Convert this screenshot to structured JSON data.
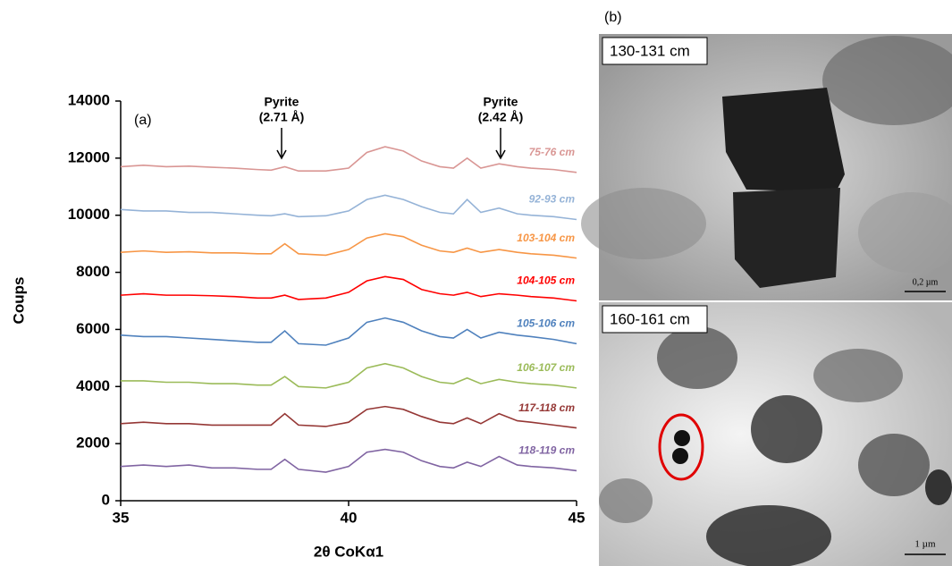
{
  "chart_data": {
    "type": "line",
    "panel_label": "(a)",
    "xlabel": "2θ CoKα1",
    "ylabel": "Coups",
    "x": [
      35,
      35.5,
      36,
      36.5,
      37,
      37.5,
      38,
      38.3,
      38.6,
      38.9,
      39.5,
      40,
      40.4,
      40.8,
      41.2,
      41.6,
      42,
      42.3,
      42.6,
      42.9,
      43.3,
      43.7,
      44,
      44.5,
      45
    ],
    "xlim": [
      35,
      45
    ],
    "xticks": [
      35,
      40,
      45
    ],
    "ylim": [
      0,
      14000
    ],
    "yticks": [
      0,
      2000,
      4000,
      6000,
      8000,
      10000,
      12000,
      14000
    ],
    "grid": false,
    "annotations": [
      [
        "Pyrite",
        "(2.71 Å)"
      ],
      [
        "Pyrite",
        "(2.42 Å)"
      ]
    ],
    "series": [
      {
        "name": "75-76 cm",
        "color": "#d99694",
        "values": [
          11700,
          11750,
          11700,
          11720,
          11680,
          11650,
          11600,
          11580,
          11700,
          11550,
          11550,
          11650,
          12200,
          12400,
          12250,
          11900,
          11700,
          11650,
          12000,
          11650,
          11800,
          11700,
          11650,
          11600,
          11500
        ]
      },
      {
        "name": "92-93 cm",
        "color": "#95b3d7",
        "values": [
          10200,
          10150,
          10150,
          10100,
          10100,
          10050,
          10000,
          9980,
          10050,
          9950,
          9980,
          10150,
          10550,
          10700,
          10550,
          10300,
          10100,
          10050,
          10550,
          10100,
          10250,
          10050,
          10000,
          9950,
          9850
        ]
      },
      {
        "name": "103-104 cm",
        "color": "#f79646",
        "values": [
          8700,
          8750,
          8700,
          8720,
          8680,
          8680,
          8650,
          8650,
          9000,
          8650,
          8600,
          8800,
          9200,
          9350,
          9250,
          8950,
          8750,
          8700,
          8850,
          8700,
          8800,
          8700,
          8650,
          8600,
          8500
        ]
      },
      {
        "name": "104-105 cm",
        "color": "#ff0000",
        "values": [
          7200,
          7250,
          7200,
          7200,
          7180,
          7150,
          7100,
          7100,
          7200,
          7050,
          7100,
          7300,
          7700,
          7850,
          7750,
          7400,
          7250,
          7200,
          7300,
          7150,
          7250,
          7200,
          7150,
          7100,
          7000
        ]
      },
      {
        "name": "105-106 cm",
        "color": "#4f81bd",
        "values": [
          5800,
          5750,
          5750,
          5700,
          5650,
          5600,
          5550,
          5550,
          5950,
          5500,
          5450,
          5700,
          6250,
          6400,
          6250,
          5950,
          5750,
          5700,
          6000,
          5700,
          5900,
          5800,
          5750,
          5650,
          5500
        ]
      },
      {
        "name": "106-107 cm",
        "color": "#9bbb59",
        "values": [
          4200,
          4200,
          4150,
          4150,
          4100,
          4100,
          4050,
          4050,
          4350,
          4000,
          3950,
          4150,
          4650,
          4800,
          4650,
          4350,
          4150,
          4100,
          4300,
          4100,
          4250,
          4150,
          4100,
          4050,
          3950
        ]
      },
      {
        "name": "117-118 cm",
        "color": "#953735",
        "values": [
          2700,
          2750,
          2700,
          2700,
          2650,
          2650,
          2650,
          2650,
          3050,
          2650,
          2600,
          2750,
          3200,
          3300,
          3200,
          2950,
          2750,
          2700,
          2900,
          2700,
          3050,
          2800,
          2750,
          2650,
          2550
        ]
      },
      {
        "name": "118-119 cm",
        "color": "#8064a2",
        "values": [
          1200,
          1250,
          1200,
          1250,
          1150,
          1150,
          1100,
          1100,
          1450,
          1100,
          1000,
          1200,
          1700,
          1800,
          1700,
          1400,
          1200,
          1150,
          1350,
          1200,
          1550,
          1250,
          1200,
          1150,
          1050
        ]
      }
    ]
  },
  "panel_b": {
    "label": "(b)",
    "images": [
      {
        "caption": "130-131 cm",
        "scale": "0,2 µm"
      },
      {
        "caption": "160-161 cm",
        "scale": "1 µm"
      }
    ]
  }
}
